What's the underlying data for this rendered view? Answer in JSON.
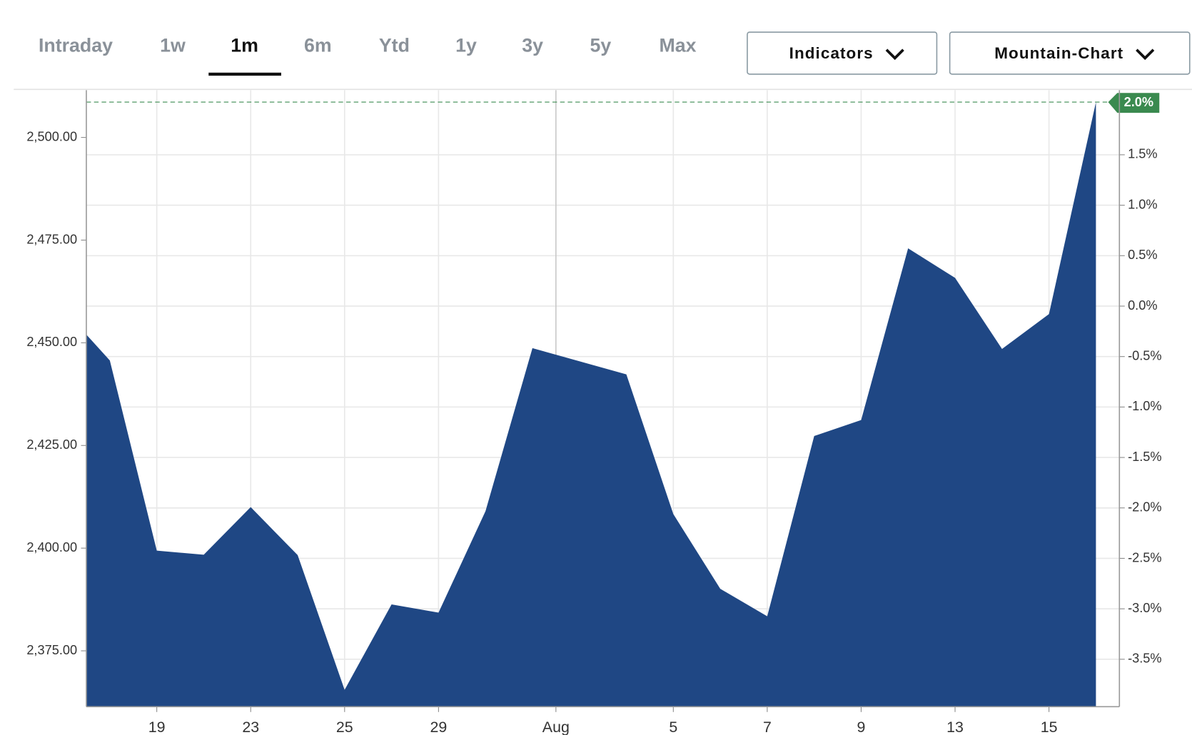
{
  "tabs": [
    "Intraday",
    "1w",
    "1m",
    "6m",
    "Ytd",
    "1y",
    "3y",
    "5y",
    "Max"
  ],
  "active_tab": "1m",
  "buttons": [
    "Indicators",
    "Mountain-Chart"
  ],
  "chart_data": {
    "type": "area",
    "color": "#1f4784",
    "x": [
      -0.5,
      0,
      1,
      2,
      3,
      4,
      5,
      6,
      7,
      8,
      9,
      10,
      11,
      12,
      13,
      14,
      15,
      16,
      17,
      18,
      19,
      20,
      21
    ],
    "values": [
      2452.0,
      2445.7,
      2399.4,
      2398.4,
      2410.0,
      2398.3,
      2365.5,
      2386.3,
      2384.3,
      2409.0,
      2448.7,
      2445.5,
      2442.3,
      2408.3,
      2390.1,
      2383.4,
      2427.3,
      2431.2,
      2473.0,
      2465.8,
      2448.5,
      2457.0,
      2508.6
    ],
    "xlim": [
      -0.5,
      21.5
    ],
    "xticks": [
      {
        "value": 1,
        "label": "19"
      },
      {
        "value": 3,
        "label": "23"
      },
      {
        "value": 5,
        "label": "25"
      },
      {
        "value": 7,
        "label": "29"
      },
      {
        "value": 9.5,
        "label": "Aug"
      },
      {
        "value": 12,
        "label": "5"
      },
      {
        "value": 14,
        "label": "7"
      },
      {
        "value": 16,
        "label": "9"
      },
      {
        "value": 18,
        "label": "13"
      },
      {
        "value": 20,
        "label": "15"
      }
    ],
    "ylim": [
      2361.4,
      2511.5
    ],
    "yticks": [
      {
        "value": 2375,
        "label": "2,375.00"
      },
      {
        "value": 2400,
        "label": "2,400.00"
      },
      {
        "value": 2425,
        "label": "2,425.00"
      },
      {
        "value": 2450,
        "label": "2,450.00"
      },
      {
        "value": 2475,
        "label": "2,475.00"
      },
      {
        "value": 2500,
        "label": "2,500.00"
      }
    ],
    "y2lim": [
      -3.97,
      2.14
    ],
    "y2ticks": [
      {
        "value": 1.5,
        "label": "1.5%"
      },
      {
        "value": 1.0,
        "label": "1.0%"
      },
      {
        "value": 0.5,
        "label": "0.5%"
      },
      {
        "value": 0.0,
        "label": "0.0%"
      },
      {
        "value": -0.5,
        "label": "-0.5%"
      },
      {
        "value": -1.0,
        "label": "-1.0%"
      },
      {
        "value": -1.5,
        "label": "-1.5%"
      },
      {
        "value": -2.0,
        "label": "-2.0%"
      },
      {
        "value": -2.5,
        "label": "-2.5%"
      },
      {
        "value": -3.0,
        "label": "-3.0%"
      },
      {
        "value": -3.5,
        "label": "-3.5%"
      }
    ],
    "last_change_label": "2.0%",
    "last_color": "#3a8a4f",
    "grid": true
  }
}
